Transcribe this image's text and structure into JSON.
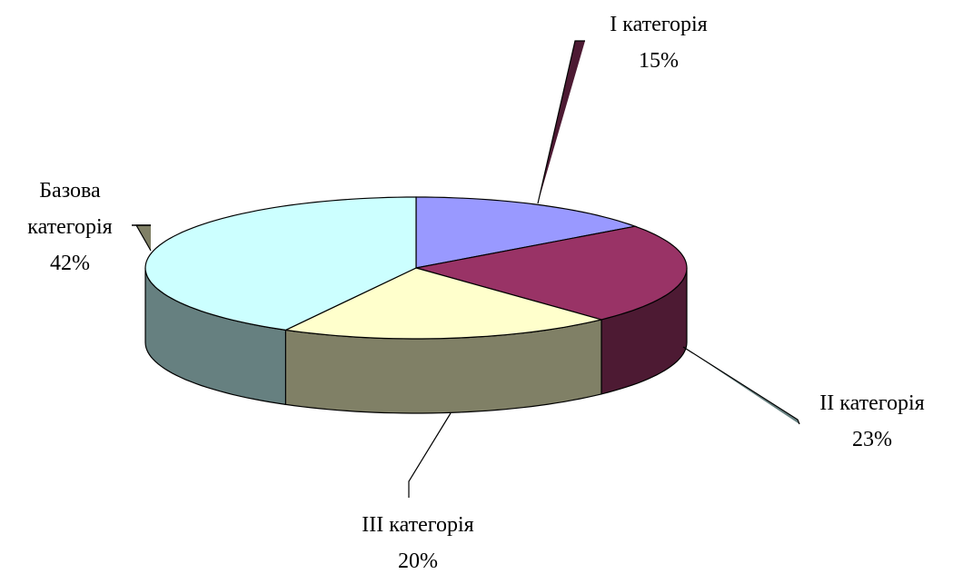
{
  "chart_data": {
    "type": "pie",
    "categories": [
      "I категорія",
      "II категорія",
      "III категорія",
      "Базова категорія"
    ],
    "values": [
      15,
      23,
      20,
      42
    ],
    "value_labels": [
      "15%",
      "23%",
      "20%",
      "42%"
    ],
    "colors": [
      "#9999ff",
      "#993366",
      "#ffffcc",
      "#ccffff"
    ],
    "side_colors": [
      "#4d4d80",
      "#4d1a33",
      "#808066",
      "#668080"
    ],
    "three_d": true
  }
}
